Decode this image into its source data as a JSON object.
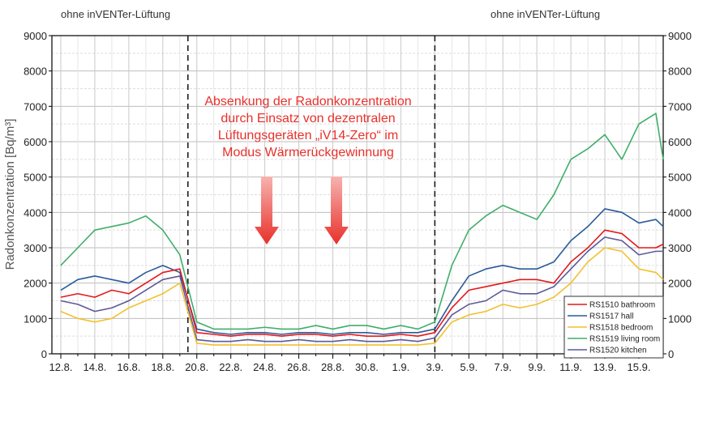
{
  "chart_data": {
    "type": "line",
    "ylabel": "Radonkonzentration [Bq/m³]",
    "ylim": [
      0,
      9000
    ],
    "yticks": [
      0,
      1000,
      2000,
      3000,
      4000,
      5000,
      6000,
      7000,
      8000,
      9000
    ],
    "x_start": "12.8.",
    "x_ticks": [
      "12.8.",
      "14.8.",
      "16.8.",
      "18.8.",
      "20.8.",
      "22.8.",
      "24.8.",
      "26.8.",
      "28.8.",
      "30.8.",
      "1.9.",
      "3.9.",
      "5.9.",
      "7.9.",
      "9.9.",
      "11.9.",
      "13.9.",
      "15.9."
    ],
    "x_dates": [
      "12.8.",
      "13.8.",
      "14.8.",
      "15.8.",
      "16.8.",
      "17.8.",
      "18.8.",
      "19.8.",
      "20.8.",
      "21.8.",
      "22.8.",
      "23.8.",
      "24.8.",
      "25.8.",
      "26.8.",
      "27.8.",
      "28.8.",
      "29.8.",
      "30.8.",
      "31.8.",
      "1.9.",
      "2.9.",
      "3.9.",
      "4.9.",
      "5.9.",
      "6.9.",
      "7.9.",
      "8.9.",
      "9.9.",
      "10.9.",
      "11.9.",
      "12.9.",
      "13.9.",
      "14.9.",
      "15.9.",
      "16.9.",
      "17.9."
    ],
    "grid": true,
    "legend_position": "bottom-right",
    "annotations": {
      "left_top": "ohne inVENTer-Lüftung",
      "right_top": "ohne inVENTer-Lüftung",
      "center": [
        "Absenkung der Radonkonzentration",
        "durch Einsatz von dezentralen",
        "Lüftungsgeräten „iV14-Zero“ im",
        "Modus Wärmerückgewinnung"
      ],
      "dashed_lines_at": [
        "19.8.",
        "3.9."
      ]
    },
    "series": [
      {
        "name": "RS1510 bathroom",
        "color": "#e3191c",
        "values": [
          1600,
          1700,
          1600,
          1800,
          1700,
          2000,
          2300,
          2400,
          600,
          550,
          500,
          550,
          550,
          500,
          550,
          550,
          500,
          550,
          500,
          500,
          550,
          500,
          600,
          1300,
          1800,
          1900,
          2000,
          2100,
          2100,
          2000,
          2600,
          3000,
          3500,
          3400,
          3000,
          3000,
          3100
        ]
      },
      {
        "name": "RS1517 hall",
        "color": "#2a5b9a",
        "values": [
          1800,
          2100,
          2200,
          2100,
          2000,
          2300,
          2500,
          2300,
          700,
          600,
          550,
          600,
          600,
          550,
          600,
          600,
          550,
          600,
          600,
          550,
          600,
          600,
          700,
          1500,
          2200,
          2400,
          2500,
          2400,
          2400,
          2600,
          3200,
          3600,
          4100,
          4000,
          3700,
          3800,
          3600
        ]
      },
      {
        "name": "RS1518 bedroom",
        "color": "#f2c12e",
        "values": [
          1200,
          1000,
          900,
          1000,
          1300,
          1500,
          1700,
          2000,
          300,
          250,
          250,
          250,
          250,
          250,
          250,
          250,
          250,
          250,
          250,
          250,
          250,
          250,
          300,
          900,
          1100,
          1200,
          1400,
          1300,
          1400,
          1600,
          2000,
          2600,
          3000,
          2900,
          2400,
          2300,
          2100
        ]
      },
      {
        "name": "RS1519 living room",
        "color": "#3fae6a",
        "values": [
          2500,
          3000,
          3500,
          3600,
          3700,
          3900,
          3500,
          2800,
          900,
          700,
          700,
          700,
          750,
          700,
          700,
          800,
          700,
          800,
          800,
          700,
          800,
          700,
          900,
          2500,
          3500,
          3900,
          4200,
          4000,
          3800,
          4500,
          5500,
          5800,
          6200,
          5500,
          6500,
          6800,
          5500
        ]
      },
      {
        "name": "RS1520 kitchen",
        "color": "#5b5a9a",
        "values": [
          1500,
          1400,
          1200,
          1300,
          1500,
          1800,
          2100,
          2200,
          400,
          350,
          350,
          400,
          350,
          350,
          400,
          350,
          350,
          400,
          350,
          350,
          400,
          350,
          450,
          1100,
          1400,
          1500,
          1800,
          1700,
          1700,
          1900,
          2400,
          2900,
          3300,
          3200,
          2800,
          2900,
          2900
        ]
      }
    ]
  }
}
